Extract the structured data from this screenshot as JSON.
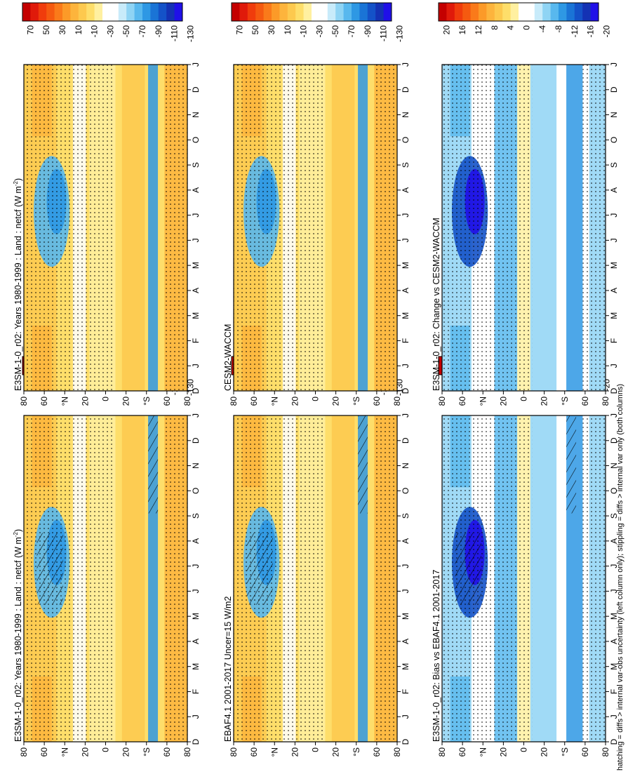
{
  "footnote": "hatching = diffs > internal var-obs uncertainty (left column only); stippling = diffs > internal var only (both columns)",
  "colors": {
    "main_scale": [
      "#c40000",
      "#e01a0a",
      "#f03c0c",
      "#f55a10",
      "#fa7a1a",
      "#fc9a28",
      "#fdb43c",
      "#fdc94e",
      "#fede6a",
      "#fff0a0",
      "#ffffff",
      "#ffffff",
      "#c8ebfa",
      "#8fd4f4",
      "#58b8ee",
      "#2e98e4",
      "#1a74d6",
      "#1452c8",
      "#1432b4",
      "#2010e8"
    ],
    "diff_scale": [
      "#c40000",
      "#e01a0a",
      "#f03c0c",
      "#f55a10",
      "#fa7a1a",
      "#fc9a28",
      "#fdb43c",
      "#fdc94e",
      "#fede6a",
      "#fff0a0",
      "#ffffff",
      "#ffffff",
      "#c8ebfa",
      "#8fd4f4",
      "#58b8ee",
      "#2e98e4",
      "#1a74d6",
      "#1452c8",
      "#1432b4",
      "#2010e8"
    ]
  },
  "colorbars": {
    "main_ticks": [
      "70",
      "50",
      "30",
      "10",
      "-10",
      "-30",
      "-50",
      "-70",
      "-90",
      "-110",
      "-130"
    ],
    "diff_ticks": [
      "20",
      "16",
      "12",
      "8",
      "4",
      "0",
      "-4",
      "-8",
      "-12",
      "-16",
      "-20"
    ]
  },
  "axes": {
    "month_ticks": [
      "D",
      "J",
      "F",
      "M",
      "A",
      "M",
      "J",
      "J",
      "A",
      "S",
      "O",
      "N",
      "D",
      "J"
    ],
    "lat_ticks": [
      "80",
      "60",
      "°N",
      "20",
      "0",
      "20",
      "°S",
      "60",
      "80"
    ]
  },
  "chart_data": [
    {
      "id": "p1",
      "type": "heatmap",
      "title": "E3SM-1-0_r02: Years 1980-1999 : Land : netcf (W m",
      "title_sup": "-2",
      "title_tail": ")",
      "x_ticks": [
        "D",
        "J",
        "F",
        "M",
        "A",
        "M",
        "J",
        "J",
        "A",
        "S",
        "O",
        "N",
        "D",
        "J"
      ],
      "y_ticks": [
        "80",
        "60",
        "°N",
        "20",
        "0",
        "20",
        "°S",
        "60",
        "80"
      ],
      "colorbar": "main",
      "hatching": true,
      "stippling": true
    },
    {
      "id": "p2",
      "type": "heatmap",
      "title": "EBAF4.1 2001-2017 Uncer=15 W/m2",
      "x_ticks": [
        "D",
        "J",
        "F",
        "M",
        "A",
        "M",
        "J",
        "J",
        "A",
        "S",
        "O",
        "N",
        "D",
        "J"
      ],
      "y_ticks": [
        "80",
        "60",
        "°N",
        "20",
        "0",
        "20",
        "°S",
        "60",
        "80"
      ],
      "colorbar": "main",
      "hatching": true,
      "stippling": true
    },
    {
      "id": "p3",
      "type": "heatmap",
      "title": "E3SM-1-0_r02: Bias vs EBAF4.1 2001-2017",
      "x_ticks": [
        "D",
        "J",
        "F",
        "M",
        "A",
        "M",
        "J",
        "J",
        "A",
        "S",
        "O",
        "N",
        "D",
        "J"
      ],
      "y_ticks": [
        "80",
        "60",
        "°N",
        "20",
        "0",
        "20",
        "°S",
        "60",
        "80"
      ],
      "colorbar": "diff",
      "hatching": true,
      "stippling": true
    },
    {
      "id": "p4",
      "type": "heatmap",
      "title": "E3SM-1-0_r02: Years 1980-1999 : Land : netcf (W m",
      "title_sup": "-2",
      "title_tail": ")",
      "x_ticks": [
        "D",
        "J",
        "F",
        "M",
        "A",
        "M",
        "J",
        "J",
        "A",
        "S",
        "O",
        "N",
        "D",
        "J"
      ],
      "y_ticks": [
        "80",
        "60",
        "°N",
        "20",
        "0",
        "20",
        "°S",
        "60",
        "80"
      ],
      "colorbar": "main",
      "hatching": false,
      "stippling": true
    },
    {
      "id": "p5",
      "type": "heatmap",
      "title": "CESM2-WACCM",
      "x_ticks": [
        "D",
        "J",
        "F",
        "M",
        "A",
        "M",
        "J",
        "J",
        "A",
        "S",
        "O",
        "N",
        "D",
        "J"
      ],
      "y_ticks": [
        "80",
        "60",
        "°N",
        "20",
        "0",
        "20",
        "°S",
        "60",
        "80"
      ],
      "colorbar": "main",
      "hatching": false,
      "stippling": true
    },
    {
      "id": "p6",
      "type": "heatmap",
      "title": "E3SM-1-0_r02: Change vs CESM2-WACCM",
      "x_ticks": [
        "D",
        "J",
        "F",
        "M",
        "A",
        "M",
        "J",
        "J",
        "A",
        "S",
        "O",
        "N",
        "D",
        "J"
      ],
      "y_ticks": [
        "80",
        "60",
        "°N",
        "20",
        "0",
        "20",
        "°S",
        "60",
        "80"
      ],
      "colorbar": "diff",
      "hatching": false,
      "stippling": true
    }
  ]
}
